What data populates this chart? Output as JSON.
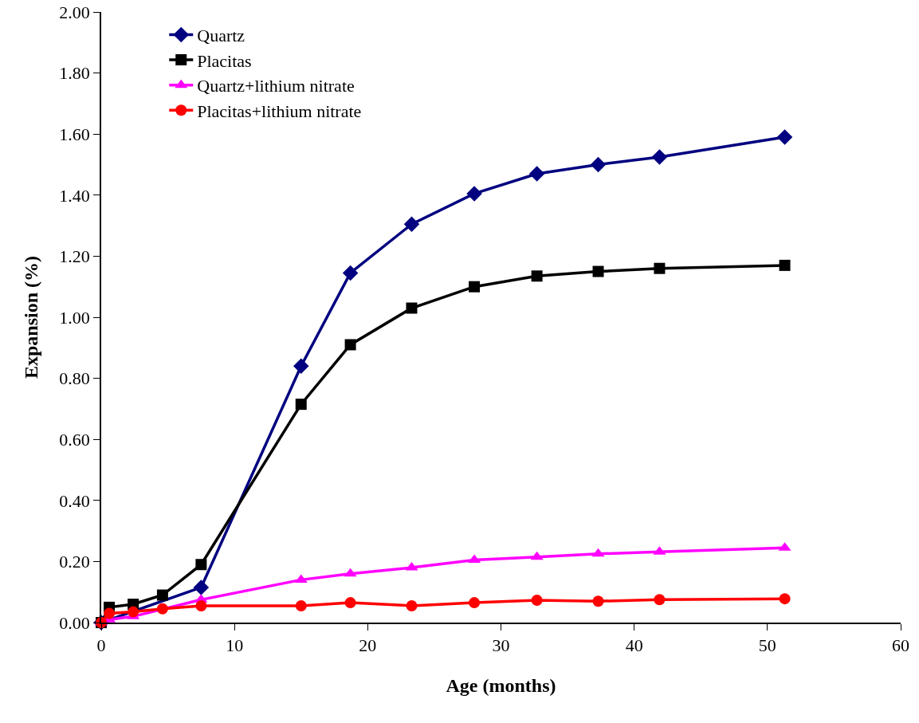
{
  "chart_data": {
    "type": "line",
    "xlabel": "Age (months)",
    "ylabel": "Expansion (%)",
    "x": [
      0,
      0.6,
      2.4,
      4.6,
      7.5,
      15.0,
      18.7,
      23.3,
      28.0,
      32.7,
      37.3,
      41.9,
      51.3
    ],
    "series": [
      {
        "name": "Quartz",
        "color": "#000080",
        "marker": "diamond",
        "values": [
          0,
          null,
          null,
          null,
          0.115,
          0.84,
          1.145,
          1.305,
          1.405,
          1.47,
          1.5,
          1.525,
          1.59
        ]
      },
      {
        "name": "Placitas",
        "color": "#000000",
        "marker": "square",
        "values": [
          0,
          0.05,
          0.06,
          0.09,
          0.19,
          0.715,
          0.91,
          1.03,
          1.1,
          1.135,
          1.15,
          1.16,
          1.17
        ]
      },
      {
        "name": "Quartz+lithium nitrate",
        "color": "#ff00ff",
        "marker": "triangle",
        "values": [
          0,
          0.01,
          0.02,
          null,
          0.075,
          0.14,
          0.16,
          0.18,
          0.205,
          0.215,
          0.225,
          0.232,
          0.245
        ]
      },
      {
        "name": "Placitas+lithium nitrate",
        "color": "#ff0000",
        "marker": "circle",
        "values": [
          0,
          0.03,
          0.035,
          0.045,
          0.055,
          0.055,
          0.065,
          0.055,
          0.065,
          0.073,
          0.07,
          0.075,
          0.078
        ]
      }
    ],
    "xlim": [
      0,
      60
    ],
    "xticks": [
      0,
      10,
      20,
      30,
      40,
      50,
      60
    ],
    "ylim": [
      0,
      2
    ],
    "yticks": [
      {
        "value": 0,
        "label": "0.00"
      },
      {
        "value": 0.2,
        "label": "0.20"
      },
      {
        "value": 0.4,
        "label": "0.40"
      },
      {
        "value": 0.6,
        "label": "0.60"
      },
      {
        "value": 0.8,
        "label": "0.80"
      },
      {
        "value": 1,
        "label": "1.00"
      },
      {
        "value": 1.2,
        "label": "1.20"
      },
      {
        "value": 1.4,
        "label": "1.40"
      },
      {
        "value": 1.6,
        "label": "1.60"
      },
      {
        "value": 1.8,
        "label": "1.80"
      },
      {
        "value": 2,
        "label": "2.00"
      }
    ],
    "grid": false,
    "legend": "top left"
  }
}
